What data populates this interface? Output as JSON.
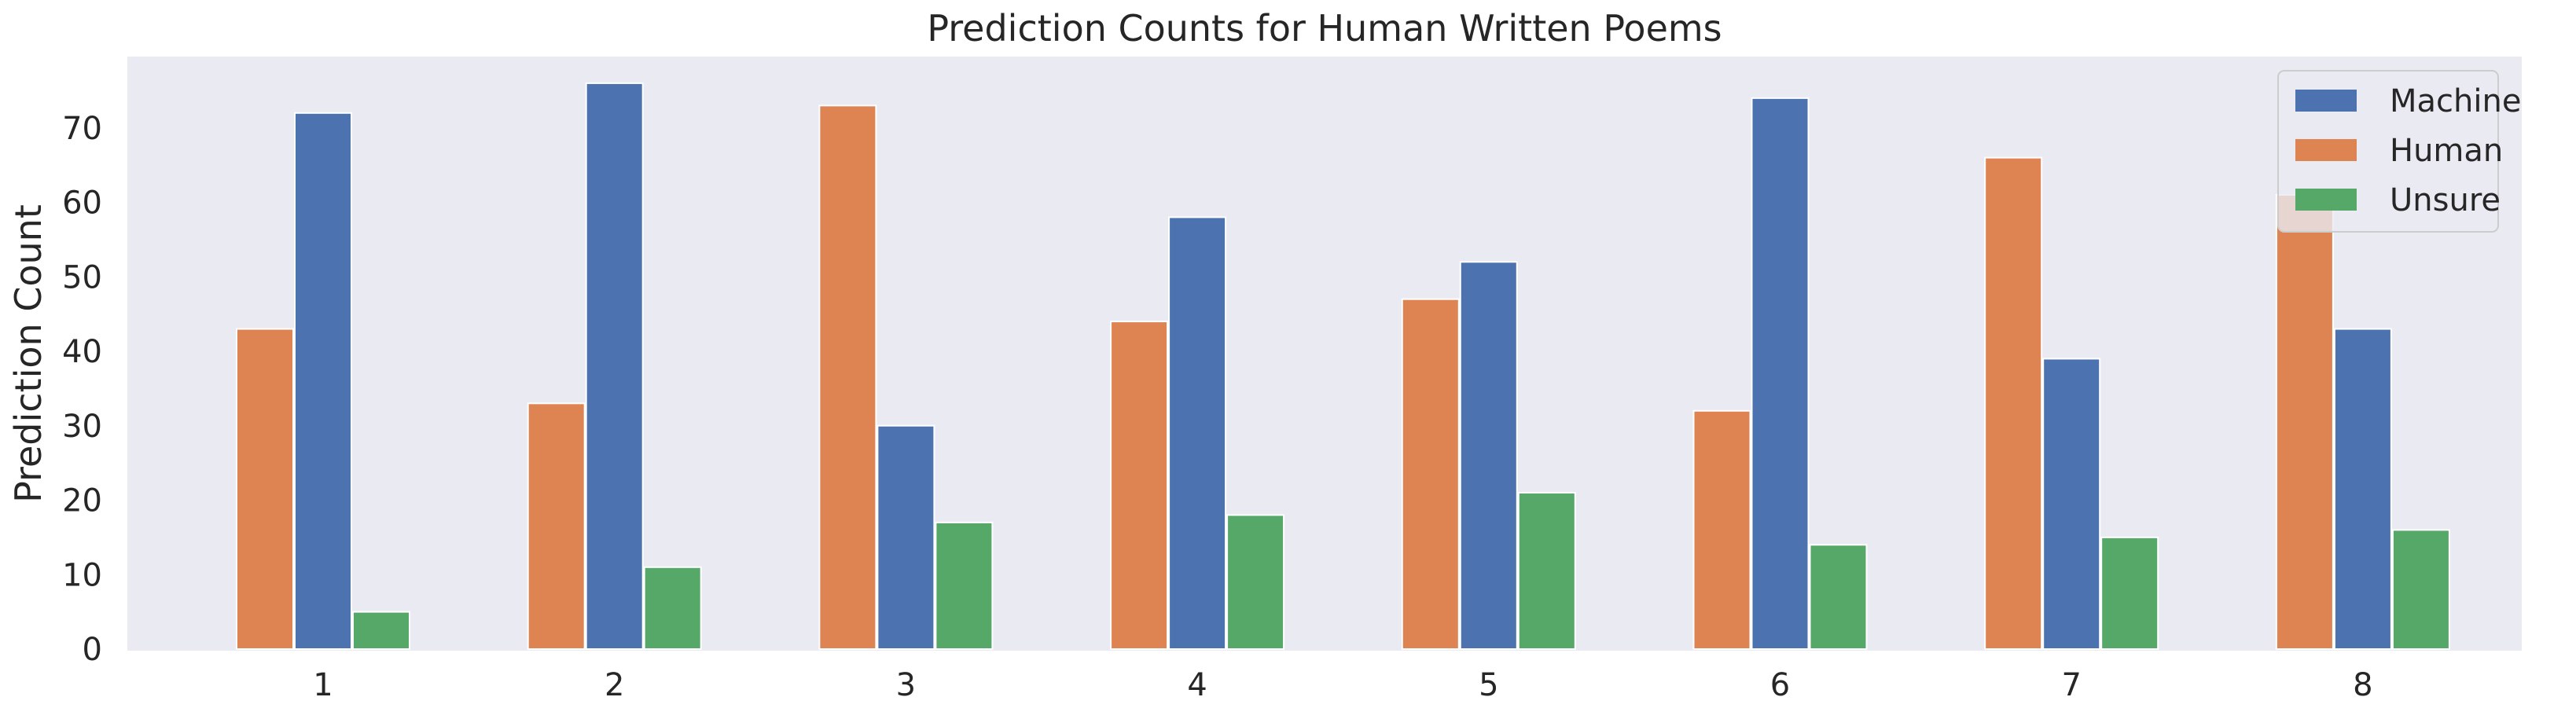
{
  "chart_data": {
    "type": "bar",
    "title": "Prediction Counts for Human Written Poems",
    "xlabel": "",
    "ylabel": "Prediction Count",
    "categories": [
      "1",
      "2",
      "3",
      "4",
      "5",
      "6",
      "7",
      "8"
    ],
    "yticks": [
      0,
      10,
      20,
      30,
      40,
      50,
      60,
      70
    ],
    "ylim": [
      0,
      79
    ],
    "grid": false,
    "legend_position": "top-right",
    "series": [
      {
        "name": "Human",
        "color": "#dd8452",
        "values": [
          43,
          33,
          73,
          44,
          47,
          32,
          66,
          61
        ]
      },
      {
        "name": "Machine",
        "color": "#4c72b0",
        "values": [
          72,
          76,
          30,
          58,
          52,
          74,
          39,
          43
        ]
      },
      {
        "name": "Unsure",
        "color": "#55a868",
        "values": [
          5,
          11,
          17,
          18,
          21,
          14,
          15,
          16
        ]
      }
    ],
    "legend_order": [
      "Machine",
      "Human",
      "Unsure"
    ]
  },
  "colors": {
    "plot_background": "#eaeaf2",
    "bar_edge": "#ffffff"
  }
}
